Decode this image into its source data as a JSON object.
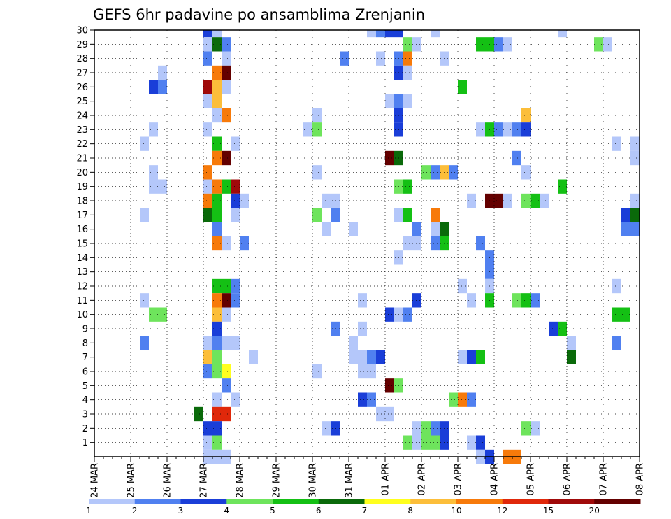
{
  "chart_data": {
    "type": "heatmap",
    "title": "GEFS 6hr padavine po ansamblima Zrenjanin",
    "x_ticks": [
      "24 MAR",
      "25 MAR",
      "26 MAR",
      "27 MAR",
      "28 MAR",
      "29 MAR",
      "30 MAR",
      "31 MAR",
      "01 APR",
      "02 APR",
      "03 APR",
      "04 APR",
      "05 APR",
      "06 APR",
      "07 APR",
      "08 APR"
    ],
    "y_ticks": [
      "1",
      "2",
      "3",
      "4",
      "5",
      "6",
      "7",
      "8",
      "9",
      "10",
      "11",
      "12",
      "13",
      "14",
      "15",
      "16",
      "17",
      "18",
      "19",
      "20",
      "21",
      "22",
      "23",
      "24",
      "25",
      "26",
      "27",
      "28",
      "29",
      "30"
    ],
    "xlim_days": [
      0,
      15
    ],
    "ylim_members": [
      0,
      30
    ],
    "time_step_hours": 6,
    "grid": "dotted",
    "colorbar": {
      "labels": [
        "1",
        "2",
        "3",
        "4",
        "5",
        "6",
        "7",
        "8",
        "10",
        "12",
        "15",
        "20"
      ],
      "colors": [
        "#b4c7fa",
        "#5080f0",
        "#1a3ed8",
        "#6ee45c",
        "#14c014",
        "#0a6a0a",
        "#ffff1e",
        "#fcbe3a",
        "#f77a0a",
        "#e0280a",
        "#a00a0a",
        "#640000"
      ]
    },
    "cells": [
      [
        30,
        3.0,
        3
      ],
      [
        30,
        3.25,
        1
      ],
      [
        30,
        7.5,
        1
      ],
      [
        30,
        7.75,
        2
      ],
      [
        30,
        8.0,
        3
      ],
      [
        30,
        8.25,
        3
      ],
      [
        30,
        9.25,
        1
      ],
      [
        30,
        12.75,
        1
      ],
      [
        29,
        3.0,
        1
      ],
      [
        29,
        3.25,
        6
      ],
      [
        29,
        3.5,
        2
      ],
      [
        29,
        8.5,
        4
      ],
      [
        29,
        8.75,
        1
      ],
      [
        29,
        10.5,
        5
      ],
      [
        29,
        10.75,
        5
      ],
      [
        29,
        11.0,
        2
      ],
      [
        29,
        11.25,
        1
      ],
      [
        29,
        13.75,
        4
      ],
      [
        29,
        14.0,
        1
      ],
      [
        28,
        3.0,
        2
      ],
      [
        28,
        3.5,
        1
      ],
      [
        28,
        6.75,
        2
      ],
      [
        28,
        7.75,
        1
      ],
      [
        28,
        8.25,
        2
      ],
      [
        28,
        8.5,
        10
      ],
      [
        28,
        9.5,
        1
      ],
      [
        27,
        1.75,
        1
      ],
      [
        27,
        3.25,
        10
      ],
      [
        27,
        3.5,
        20
      ],
      [
        27,
        8.25,
        3
      ],
      [
        27,
        8.5,
        1
      ],
      [
        26,
        1.5,
        3
      ],
      [
        26,
        1.75,
        2
      ],
      [
        26,
        3.0,
        15
      ],
      [
        26,
        3.25,
        8
      ],
      [
        26,
        3.5,
        1
      ],
      [
        26,
        10.0,
        5
      ],
      [
        25,
        3.0,
        1
      ],
      [
        25,
        3.25,
        8
      ],
      [
        25,
        8.0,
        1
      ],
      [
        25,
        8.25,
        2
      ],
      [
        25,
        8.5,
        1
      ],
      [
        24,
        3.25,
        1
      ],
      [
        24,
        3.5,
        10
      ],
      [
        24,
        6.0,
        1
      ],
      [
        24,
        8.25,
        3
      ],
      [
        24,
        11.75,
        8
      ],
      [
        23,
        1.5,
        1
      ],
      [
        23,
        3.0,
        1
      ],
      [
        23,
        5.75,
        1
      ],
      [
        23,
        6.0,
        4
      ],
      [
        23,
        8.25,
        3
      ],
      [
        23,
        10.5,
        1
      ],
      [
        23,
        10.75,
        5
      ],
      [
        23,
        11.0,
        2
      ],
      [
        23,
        11.25,
        1
      ],
      [
        23,
        11.5,
        2
      ],
      [
        23,
        11.75,
        3
      ],
      [
        22,
        1.25,
        1
      ],
      [
        22,
        3.25,
        5
      ],
      [
        22,
        3.75,
        1
      ],
      [
        22,
        14.25,
        1
      ],
      [
        22,
        14.75,
        1
      ],
      [
        21,
        3.25,
        10
      ],
      [
        21,
        3.5,
        20
      ],
      [
        21,
        8.0,
        20
      ],
      [
        21,
        8.25,
        6
      ],
      [
        21,
        11.5,
        2
      ],
      [
        21,
        14.75,
        1
      ],
      [
        21,
        15.0,
        1
      ],
      [
        20,
        1.5,
        1
      ],
      [
        20,
        3.0,
        10
      ],
      [
        20,
        6.0,
        1
      ],
      [
        20,
        9.0,
        4
      ],
      [
        20,
        9.25,
        2
      ],
      [
        20,
        9.5,
        8
      ],
      [
        20,
        9.75,
        2
      ],
      [
        20,
        11.75,
        1
      ],
      [
        19,
        1.5,
        1
      ],
      [
        19,
        1.75,
        1
      ],
      [
        19,
        3.0,
        1
      ],
      [
        19,
        3.25,
        10
      ],
      [
        19,
        3.5,
        5
      ],
      [
        19,
        3.75,
        15
      ],
      [
        19,
        8.25,
        4
      ],
      [
        19,
        8.5,
        5
      ],
      [
        19,
        12.75,
        5
      ],
      [
        18,
        3.0,
        10
      ],
      [
        18,
        3.25,
        5
      ],
      [
        18,
        3.75,
        3
      ],
      [
        18,
        4.0,
        1
      ],
      [
        18,
        6.25,
        1
      ],
      [
        18,
        6.5,
        1
      ],
      [
        18,
        10.25,
        1
      ],
      [
        18,
        10.75,
        20
      ],
      [
        18,
        11.0,
        20
      ],
      [
        18,
        11.25,
        1
      ],
      [
        18,
        11.75,
        4
      ],
      [
        18,
        12.0,
        5
      ],
      [
        18,
        12.25,
        1
      ],
      [
        18,
        14.75,
        1
      ],
      [
        18,
        15.0,
        1
      ],
      [
        17,
        1.25,
        1
      ],
      [
        17,
        3.0,
        6
      ],
      [
        17,
        3.25,
        5
      ],
      [
        17,
        3.75,
        1
      ],
      [
        17,
        6.0,
        4
      ],
      [
        17,
        6.5,
        2
      ],
      [
        17,
        8.25,
        1
      ],
      [
        17,
        8.5,
        5
      ],
      [
        17,
        9.25,
        10
      ],
      [
        17,
        14.5,
        3
      ],
      [
        17,
        14.75,
        6
      ],
      [
        17,
        15.0,
        2
      ],
      [
        16,
        3.25,
        2
      ],
      [
        16,
        6.25,
        1
      ],
      [
        16,
        7.0,
        1
      ],
      [
        16,
        8.75,
        2
      ],
      [
        16,
        9.25,
        1
      ],
      [
        16,
        9.5,
        6
      ],
      [
        16,
        14.5,
        2
      ],
      [
        16,
        14.75,
        2
      ],
      [
        15,
        3.25,
        10
      ],
      [
        15,
        3.5,
        1
      ],
      [
        15,
        4.0,
        2
      ],
      [
        15,
        8.5,
        1
      ],
      [
        15,
        8.75,
        1
      ],
      [
        15,
        9.25,
        2
      ],
      [
        15,
        9.5,
        5
      ],
      [
        15,
        10.5,
        2
      ],
      [
        14,
        8.25,
        1
      ],
      [
        14,
        10.75,
        2
      ],
      [
        13,
        10.75,
        2
      ],
      [
        12,
        3.25,
        5
      ],
      [
        12,
        3.5,
        5
      ],
      [
        12,
        3.75,
        2
      ],
      [
        12,
        10.0,
        1
      ],
      [
        12,
        10.75,
        1
      ],
      [
        12,
        14.25,
        1
      ],
      [
        11,
        1.25,
        1
      ],
      [
        11,
        3.25,
        10
      ],
      [
        11,
        3.5,
        20
      ],
      [
        11,
        3.75,
        2
      ],
      [
        11,
        7.25,
        1
      ],
      [
        11,
        8.75,
        3
      ],
      [
        11,
        10.25,
        1
      ],
      [
        11,
        10.75,
        5
      ],
      [
        11,
        11.5,
        4
      ],
      [
        11,
        11.75,
        5
      ],
      [
        11,
        12.0,
        2
      ],
      [
        10,
        1.5,
        4
      ],
      [
        10,
        1.75,
        4
      ],
      [
        10,
        3.25,
        8
      ],
      [
        10,
        3.5,
        1
      ],
      [
        10,
        8.0,
        3
      ],
      [
        10,
        8.25,
        1
      ],
      [
        10,
        8.5,
        2
      ],
      [
        10,
        14.25,
        5
      ],
      [
        10,
        14.5,
        5
      ],
      [
        9,
        3.25,
        3
      ],
      [
        9,
        6.5,
        2
      ],
      [
        9,
        7.25,
        1
      ],
      [
        9,
        12.5,
        3
      ],
      [
        9,
        12.75,
        5
      ],
      [
        8,
        1.25,
        2
      ],
      [
        8,
        3.0,
        1
      ],
      [
        8,
        3.25,
        2
      ],
      [
        8,
        3.5,
        1
      ],
      [
        8,
        3.75,
        1
      ],
      [
        8,
        7.0,
        1
      ],
      [
        8,
        13.0,
        1
      ],
      [
        8,
        14.25,
        2
      ],
      [
        8,
        15.0,
        1
      ],
      [
        7,
        3.0,
        8
      ],
      [
        7,
        3.25,
        4
      ],
      [
        7,
        4.25,
        1
      ],
      [
        7,
        7.0,
        1
      ],
      [
        7,
        7.25,
        1
      ],
      [
        7,
        7.5,
        2
      ],
      [
        7,
        7.75,
        3
      ],
      [
        7,
        10.0,
        1
      ],
      [
        7,
        10.25,
        3
      ],
      [
        7,
        10.5,
        5
      ],
      [
        7,
        13.0,
        6
      ],
      [
        6,
        3.0,
        2
      ],
      [
        6,
        3.25,
        4
      ],
      [
        6,
        3.5,
        7
      ],
      [
        6,
        6.0,
        1
      ],
      [
        6,
        7.25,
        1
      ],
      [
        6,
        7.5,
        1
      ],
      [
        6,
        15.0,
        1
      ],
      [
        5,
        3.5,
        2
      ],
      [
        5,
        8.0,
        20
      ],
      [
        5,
        8.25,
        4
      ],
      [
        4,
        3.25,
        1
      ],
      [
        4,
        3.75,
        1
      ],
      [
        4,
        7.25,
        3
      ],
      [
        4,
        7.5,
        2
      ],
      [
        4,
        9.75,
        4
      ],
      [
        4,
        10.0,
        10
      ],
      [
        4,
        10.25,
        2
      ],
      [
        3,
        2.75,
        6
      ],
      [
        3,
        3.25,
        12
      ],
      [
        3,
        3.5,
        12
      ],
      [
        3,
        7.75,
        1
      ],
      [
        3,
        8.0,
        1
      ],
      [
        2,
        3.0,
        3
      ],
      [
        2,
        3.25,
        3
      ],
      [
        2,
        6.25,
        1
      ],
      [
        2,
        6.5,
        3
      ],
      [
        2,
        8.75,
        1
      ],
      [
        2,
        9.0,
        4
      ],
      [
        2,
        9.25,
        2
      ],
      [
        2,
        9.5,
        3
      ],
      [
        2,
        11.75,
        4
      ],
      [
        2,
        12.0,
        1
      ],
      [
        1,
        3.0,
        1
      ],
      [
        1,
        3.25,
        4
      ],
      [
        1,
        8.5,
        4
      ],
      [
        1,
        8.75,
        1
      ],
      [
        1,
        9.0,
        4
      ],
      [
        1,
        9.25,
        4
      ],
      [
        1,
        9.5,
        3
      ],
      [
        1,
        10.25,
        1
      ],
      [
        1,
        10.5,
        3
      ],
      [
        1,
        15.0,
        2
      ],
      [
        0,
        3.0,
        1
      ],
      [
        0,
        3.25,
        1
      ],
      [
        0,
        3.5,
        1
      ],
      [
        0,
        10.5,
        1
      ],
      [
        0,
        10.75,
        3
      ],
      [
        0,
        11.25,
        10
      ],
      [
        0,
        11.5,
        10
      ],
      [
        0,
        15.0,
        1
      ]
    ]
  }
}
